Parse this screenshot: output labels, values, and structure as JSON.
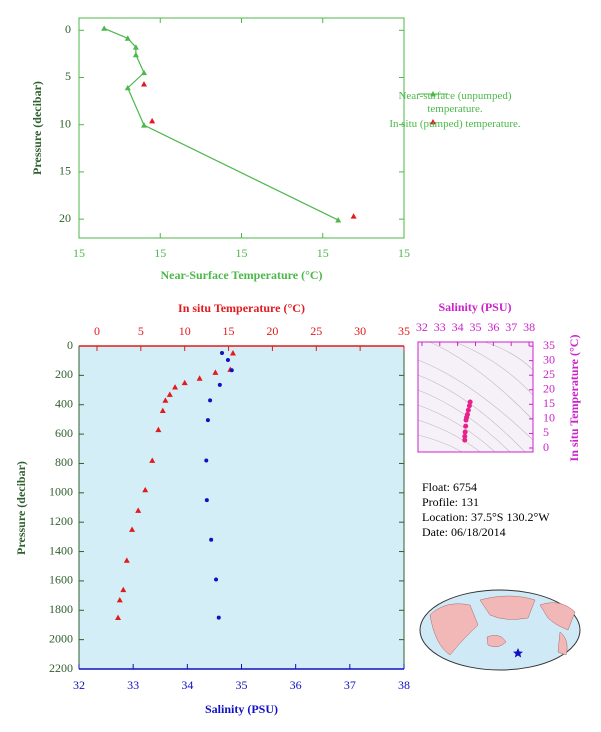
{
  "chart_data": [
    {
      "type": "line",
      "x_label": "Near-Surface Temperature (°C)",
      "y_label": "Pressure (decibar)",
      "xlim": [
        14.8,
        15.2
      ],
      "xticks": [
        {
          "value": 14.8,
          "label": "15"
        },
        {
          "value": 14.9,
          "label": "15"
        },
        {
          "value": 15.0,
          "label": "15"
        },
        {
          "value": 15.1,
          "label": "15"
        },
        {
          "value": 15.2,
          "label": "15"
        }
      ],
      "ylim": [
        22,
        -1.3
      ],
      "yticks": [
        0,
        5,
        10,
        15,
        20
      ],
      "axis_color": "#4cb84a",
      "legend": "right",
      "series": [
        {
          "name": "Near-surface (unpumped) temperature.",
          "color": "#4cb84a",
          "marker": "triangle",
          "line": true,
          "x": [
            14.831,
            14.86,
            14.87,
            14.87,
            14.88,
            14.86,
            14.88,
            15.119
          ],
          "y": [
            -0.2,
            0.85,
            1.8,
            2.6,
            4.5,
            6.1,
            10.05,
            20.1
          ]
        },
        {
          "name": "In situ (pumped) temperature.",
          "color": "#e31a1c",
          "marker": "triangle",
          "line": false,
          "x": [
            14.88,
            14.89,
            15.138
          ],
          "y": [
            5.7,
            9.6,
            19.7
          ]
        }
      ]
    },
    {
      "type": "profile",
      "y_label": "Pressure (decibar)",
      "ylim": [
        2200,
        0
      ],
      "yticks": [
        0,
        200,
        400,
        600,
        800,
        1000,
        1200,
        1400,
        1600,
        1800,
        2000,
        2200
      ],
      "y_color": "#2f5f2f",
      "background": "#d3eef7",
      "x_top": {
        "label": "In situ Temperature (°C)",
        "lim": [
          -2.05,
          35
        ],
        "ticks": [
          0,
          5,
          10,
          15,
          20,
          25,
          30,
          35
        ],
        "color": "#e31a1c"
      },
      "x_bottom": {
        "label": "Salinity (PSU)",
        "lim": [
          32,
          38
        ],
        "ticks": [
          32,
          33,
          34,
          35,
          36,
          37,
          38
        ],
        "color": "#1010c0"
      },
      "series": [
        {
          "axis": "x_top",
          "color": "#e31a1c",
          "marker": "triangle",
          "x": [
            15.5,
            15.2,
            13.5,
            11.7,
            10,
            8.9,
            8.3,
            7.8,
            7.5,
            7.0,
            6.3,
            5.5,
            4.7,
            4.0,
            3.4,
            3.0,
            2.6,
            2.4
          ],
          "y": [
            48,
            160,
            180,
            220,
            250,
            280,
            330,
            370,
            440,
            570,
            780,
            980,
            1120,
            1250,
            1460,
            1660,
            1730,
            1850
          ]
        },
        {
          "axis": "x_bottom",
          "color": "#1010c0",
          "marker": "circle",
          "x": [
            34.64,
            34.75,
            34.82,
            34.6,
            34.42,
            34.38,
            34.35,
            34.36,
            34.44,
            34.53,
            34.58
          ],
          "y": [
            48,
            95,
            165,
            265,
            370,
            505,
            780,
            1050,
            1320,
            1590,
            1850
          ]
        }
      ]
    },
    {
      "type": "scatter",
      "x_label": "Salinity (PSU)",
      "y_label": "In situ Temperature (°C)",
      "xlim": [
        31.78,
        38.22
      ],
      "xticks": [
        32,
        33,
        34,
        35,
        36,
        37,
        38
      ],
      "ylim": [
        -1.37,
        36.4
      ],
      "yticks": [
        0,
        5,
        10,
        15,
        20,
        25,
        30,
        35
      ],
      "axis_color": "#cc22cc",
      "background": "#f6f1f8",
      "series": [
        {
          "color": "#e8208a",
          "x": [
            34.7,
            34.66,
            34.6,
            34.55,
            34.5,
            34.47,
            34.45,
            34.42,
            34.4,
            34.4
          ],
          "y": [
            15.8,
            14.5,
            13,
            11.5,
            10.5,
            9.6,
            7.5,
            5.5,
            4,
            2.7
          ]
        }
      ]
    }
  ],
  "info": {
    "float": "Float:  6754",
    "profile": "Profile:  131",
    "location": "Location:  37.5°S  130.2°W",
    "date": "Date:  06/18/2014"
  }
}
